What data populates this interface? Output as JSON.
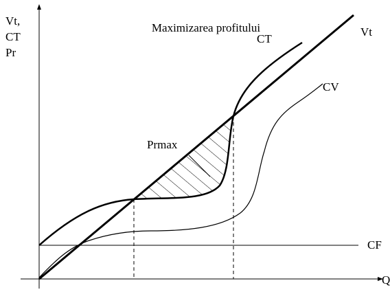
{
  "title": "Maximizarea profitului",
  "y_axis_label": [
    "Vt,",
    "CT",
    "Pr"
  ],
  "x_axis_label": "Q",
  "curves": {
    "revenue": "Vt",
    "total_cost": "CT",
    "variable_cost": "CV",
    "fixed_cost": "CF"
  },
  "profit_label": "Prmax"
}
